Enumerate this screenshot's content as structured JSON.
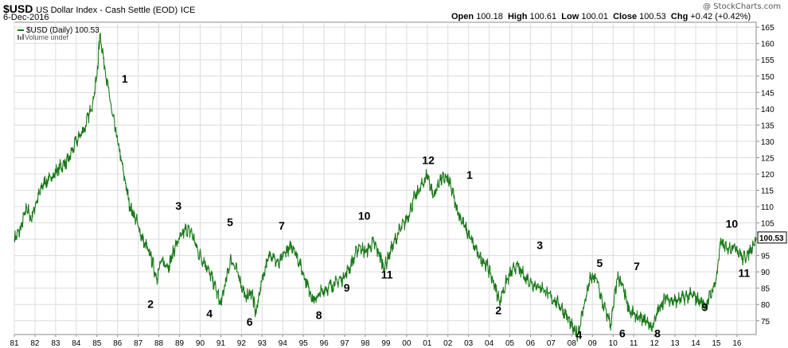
{
  "header": {
    "symbol": "$USD",
    "name": "US Dollar Index - Cash Settle (EOD)",
    "exchange": "ICE",
    "date": "6-Dec-2016",
    "brand": "@ StockCharts.com",
    "open_label": "Open",
    "open": "100.18",
    "high_label": "High",
    "high": "100.61",
    "low_label": "Low",
    "low": "100.01",
    "close_label": "Close",
    "close": "100.53",
    "chg_label": "Chg",
    "chg": "+0.42 (+0.42%)"
  },
  "legend": {
    "series_label": "$USD (Daily) 100.53",
    "volume_label": "Volume undef"
  },
  "colors": {
    "line": "#1a7a1a",
    "grid": "#dcdcdc",
    "frame": "#8a8a8a",
    "text": "#000000"
  },
  "chart_data": {
    "type": "line",
    "series": [
      {
        "name": "$USD (Daily)",
        "x": [
          1981.0,
          1981.3,
          1981.6,
          1981.8,
          1982.1,
          1982.4,
          1982.8,
          1983.2,
          1983.6,
          1984.0,
          1984.4,
          1984.8,
          1985.0,
          1985.15,
          1985.4,
          1985.7,
          1986.0,
          1986.3,
          1986.6,
          1986.9,
          1987.2,
          1987.6,
          1987.9,
          1988.1,
          1988.5,
          1988.8,
          1989.0,
          1989.3,
          1989.6,
          1989.9,
          1990.3,
          1990.7,
          1991.0,
          1991.2,
          1991.5,
          1991.8,
          1992.2,
          1992.5,
          1992.7,
          1993.0,
          1993.4,
          1993.8,
          1994.1,
          1994.5,
          1994.8,
          1995.2,
          1995.5,
          1995.9,
          1996.4,
          1996.9,
          1997.3,
          1997.7,
          1998.0,
          1998.4,
          1998.7,
          1998.9,
          1999.2,
          1999.6,
          2000.0,
          2000.4,
          2000.8,
          2001.0,
          2001.3,
          2001.6,
          2001.9,
          2002.1,
          2002.5,
          2002.8,
          2003.1,
          2003.5,
          2003.9,
          2004.2,
          2004.5,
          2004.9,
          2005.3,
          2005.8,
          2006.2,
          2006.6,
          2007.0,
          2007.4,
          2007.8,
          2008.1,
          2008.3,
          2008.6,
          2008.9,
          2009.2,
          2009.5,
          2009.9,
          2010.2,
          2010.45,
          2010.8,
          2011.2,
          2011.6,
          2011.9,
          2012.3,
          2012.6,
          2013.0,
          2013.4,
          2013.8,
          2014.2,
          2014.5,
          2014.8,
          2015.0,
          2015.2,
          2015.5,
          2015.9,
          2016.3,
          2016.6,
          2016.93
        ],
        "y": [
          100,
          103,
          110,
          106,
          112,
          117,
          119,
          122,
          124,
          130,
          134,
          142,
          150,
          163,
          152,
          140,
          130,
          120,
          110,
          106,
          100,
          95,
          88,
          93,
          92,
          98,
          100,
          103,
          102,
          96,
          92,
          86,
          80,
          86,
          94,
          90,
          82,
          84,
          77,
          88,
          96,
          92,
          96,
          98,
          93,
          86,
          81,
          84,
          86,
          88,
          92,
          98,
          96,
          99,
          95,
          91,
          96,
          102,
          106,
          113,
          117,
          120,
          113,
          118,
          119,
          117,
          108,
          104,
          100,
          95,
          92,
          87,
          81,
          88,
          92,
          88,
          86,
          85,
          82,
          80,
          76,
          72,
          71,
          80,
          88,
          88,
          80,
          74,
          88,
          86,
          78,
          76,
          75,
          73,
          80,
          82,
          81,
          82,
          83,
          81,
          80,
          84,
          88,
          99,
          97,
          98,
          94,
          96,
          100.53
        ]
      }
    ],
    "x_tick_values": [
      1981,
      1982,
      1983,
      1984,
      1985,
      1986,
      1987,
      1988,
      1989,
      1990,
      1991,
      1992,
      1993,
      1994,
      1995,
      1996,
      1997,
      1998,
      1999,
      2000,
      2001,
      2002,
      2003,
      2004,
      2005,
      2006,
      2007,
      2008,
      2009,
      2010,
      2011,
      2012,
      2013,
      2014,
      2015,
      2016
    ],
    "x_tick_labels": [
      "81",
      "82",
      "83",
      "84",
      "85",
      "86",
      "87",
      "88",
      "89",
      "90",
      "91",
      "92",
      "93",
      "94",
      "95",
      "96",
      "97",
      "98",
      "99",
      "00",
      "01",
      "02",
      "03",
      "04",
      "05",
      "06",
      "07",
      "08",
      "09",
      "10",
      "11",
      "12",
      "13",
      "14",
      "15",
      "16"
    ],
    "y_ticks": [
      75,
      80,
      85,
      90,
      95,
      100,
      105,
      110,
      115,
      120,
      125,
      130,
      135,
      140,
      145,
      150,
      155,
      160,
      165
    ],
    "xlim": [
      1981.0,
      2016.93
    ],
    "ylim": [
      70.8,
      166.5
    ],
    "last_value_label": "100.53",
    "annotations": [
      {
        "text": "1",
        "x": 1986.35,
        "y": 148
      },
      {
        "text": "2",
        "x": 1987.6,
        "y": 79
      },
      {
        "text": "3",
        "x": 1988.95,
        "y": 109
      },
      {
        "text": "4",
        "x": 1990.45,
        "y": 76
      },
      {
        "text": "5",
        "x": 1991.45,
        "y": 104
      },
      {
        "text": "6",
        "x": 1992.4,
        "y": 73.5
      },
      {
        "text": "7",
        "x": 1993.95,
        "y": 103
      },
      {
        "text": "8",
        "x": 1995.75,
        "y": 75.5
      },
      {
        "text": "9",
        "x": 1997.1,
        "y": 84
      },
      {
        "text": "10",
        "x": 1997.95,
        "y": 106
      },
      {
        "text": "11",
        "x": 1999.05,
        "y": 88
      },
      {
        "text": "12",
        "x": 2001.05,
        "y": 123
      },
      {
        "text": "1",
        "x": 2003.05,
        "y": 118.5
      },
      {
        "text": "2",
        "x": 2004.45,
        "y": 77
      },
      {
        "text": "3",
        "x": 2006.45,
        "y": 97
      },
      {
        "text": "4",
        "x": 2008.35,
        "y": 69.5
      },
      {
        "text": "5",
        "x": 2009.35,
        "y": 91.5
      },
      {
        "text": "6",
        "x": 2010.45,
        "y": 70
      },
      {
        "text": "7",
        "x": 2011.15,
        "y": 90.5
      },
      {
        "text": "8",
        "x": 2012.15,
        "y": 70
      },
      {
        "text": "9",
        "x": 2014.45,
        "y": 78
      },
      {
        "text": "10",
        "x": 2015.75,
        "y": 103.5
      },
      {
        "text": "11",
        "x": 2016.35,
        "y": 88.5
      }
    ],
    "grid": true
  }
}
